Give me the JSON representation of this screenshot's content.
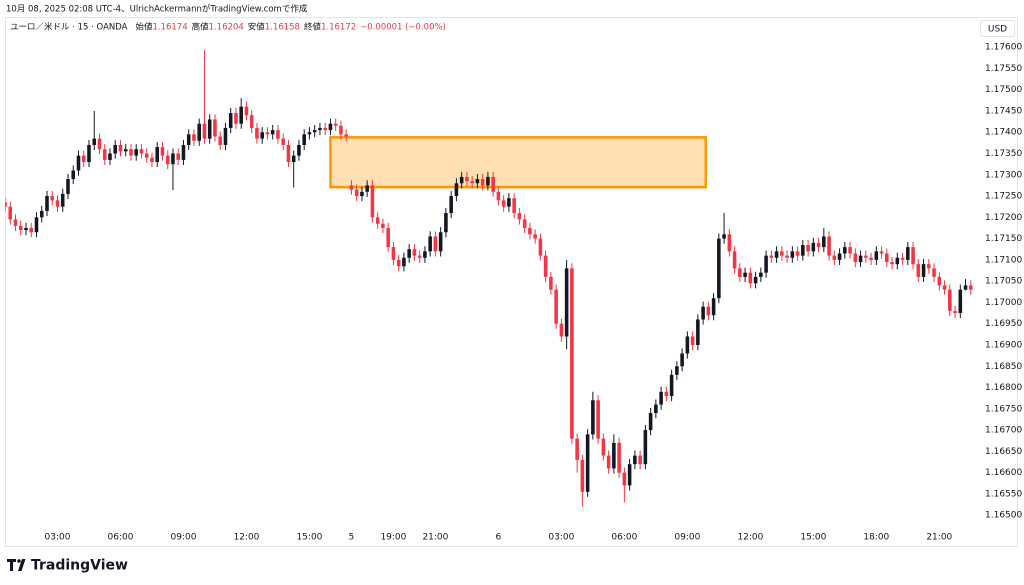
{
  "header": {
    "caption": "10月 08, 2025 02:08 UTC-4、UlrichAckermannがTradingView.comで作成",
    "symbol": "ユーロ／米ドル · 15 · OANDA",
    "ohlc": [
      {
        "label": "始値",
        "value": "1.16174"
      },
      {
        "label": "高値",
        "value": "1.16204"
      },
      {
        "label": "安値",
        "value": "1.16158"
      },
      {
        "label": "終値",
        "value": "1.16172"
      }
    ],
    "change": "−0.00001 (−0.00%)"
  },
  "chart_data": {
    "type": "candlestick",
    "currency": "USD",
    "up_color": "#131722",
    "down_color": "#f23645",
    "grid": false,
    "xlim": [
      0,
      184.8
    ],
    "xticks": [
      {
        "value": 10,
        "label": "03:00"
      },
      {
        "value": 22,
        "label": "06:00"
      },
      {
        "value": 34,
        "label": "09:00"
      },
      {
        "value": 46,
        "label": "12:00"
      },
      {
        "value": 58,
        "label": "15:00"
      },
      {
        "value": 66,
        "label": "5"
      },
      {
        "value": 74,
        "label": "19:00"
      },
      {
        "value": 82,
        "label": "21:00"
      },
      {
        "value": 94,
        "label": "6"
      },
      {
        "value": 106,
        "label": "03:00"
      },
      {
        "value": 118,
        "label": "06:00"
      },
      {
        "value": 130,
        "label": "09:00"
      },
      {
        "value": 142,
        "label": "12:00"
      },
      {
        "value": 154,
        "label": "15:00"
      },
      {
        "value": 166,
        "label": "18:00"
      },
      {
        "value": 178,
        "label": "21:00"
      }
    ],
    "ylim": [
      1.1643,
      1.17659
    ],
    "yticks": [
      {
        "value": 1.165,
        "label": "1.16500"
      },
      {
        "value": 1.1655,
        "label": "1.16550"
      },
      {
        "value": 1.166,
        "label": "1.16600"
      },
      {
        "value": 1.1665,
        "label": "1.16650"
      },
      {
        "value": 1.167,
        "label": "1.16700"
      },
      {
        "value": 1.1675,
        "label": "1.16750"
      },
      {
        "value": 1.168,
        "label": "1.16800"
      },
      {
        "value": 1.1685,
        "label": "1.16850"
      },
      {
        "value": 1.169,
        "label": "1.16900"
      },
      {
        "value": 1.1695,
        "label": "1.16950"
      },
      {
        "value": 1.17,
        "label": "1.17000"
      },
      {
        "value": 1.1705,
        "label": "1.17050"
      },
      {
        "value": 1.171,
        "label": "1.17100"
      },
      {
        "value": 1.1715,
        "label": "1.17150"
      },
      {
        "value": 1.172,
        "label": "1.17200"
      },
      {
        "value": 1.1725,
        "label": "1.17250"
      },
      {
        "value": 1.173,
        "label": "1.17300"
      },
      {
        "value": 1.1735,
        "label": "1.17350"
      },
      {
        "value": 1.174,
        "label": "1.17400"
      },
      {
        "value": 1.1745,
        "label": "1.17450"
      },
      {
        "value": 1.175,
        "label": "1.17500"
      },
      {
        "value": 1.1755,
        "label": "1.17550"
      },
      {
        "value": 1.176,
        "label": "1.17600"
      }
    ],
    "zone": {
      "top": 1.17388,
      "bottom": 1.17271,
      "from": 62,
      "to": 133.5,
      "fill": "#ffe0b2",
      "stroke": "#ff9800"
    },
    "open": [
      1.17235,
      1.17225,
      1.17195,
      1.1718,
      1.1717,
      1.17175,
      1.17165,
      1.172,
      1.17215,
      1.1725,
      1.1724,
      1.17225,
      1.17255,
      1.1729,
      1.1731,
      1.17345,
      1.1733,
      1.1737,
      1.17385,
      1.1736,
      1.17335,
      1.1735,
      1.1737,
      1.17355,
      1.1736,
      1.17345,
      1.1736,
      1.1735,
      1.1734,
      1.1733,
      1.17365,
      1.17345,
      1.17325,
      1.1735,
      1.17335,
      1.1737,
      1.17395,
      1.1738,
      1.1742,
      1.17385,
      1.1743,
      1.1739,
      1.1737,
      1.1741,
      1.17445,
      1.1742,
      1.1746,
      1.1744,
      1.1741,
      1.17385,
      1.174,
      1.17395,
      1.17405,
      1.17385,
      1.1737,
      1.1733,
      1.17345,
      1.1737,
      1.17395,
      1.174,
      1.17405,
      1.1741,
      1.17405,
      1.1742,
      1.17415,
      1.17395,
      1.17275,
      1.17265,
      1.1725,
      1.1726,
      1.17275,
      1.172,
      1.17185,
      1.17175,
      1.1713,
      1.171,
      1.17085,
      1.17105,
      1.17125,
      1.1711,
      1.17105,
      1.1712,
      1.17155,
      1.1712,
      1.17165,
      1.1721,
      1.1725,
      1.1728,
      1.17295,
      1.17285,
      1.1728,
      1.1729,
      1.17275,
      1.17295,
      1.1726,
      1.1724,
      1.17225,
      1.17245,
      1.1721,
      1.17195,
      1.17175,
      1.1716,
      1.1715,
      1.1711,
      1.1706,
      1.1703,
      1.1695,
      1.1692,
      1.1708,
      1.1668,
      1.1663,
      1.16555,
      1.1669,
      1.1677,
      1.1668,
      1.1664,
      1.1661,
      1.1667,
      1.166,
      1.1657,
      1.1662,
      1.1664,
      1.1662,
      1.167,
      1.1674,
      1.1676,
      1.1679,
      1.1678,
      1.1683,
      1.1685,
      1.1688,
      1.1692,
      1.169,
      1.1696,
      1.1699,
      1.1697,
      1.1701,
      1.1715,
      1.1716,
      1.1712,
      1.1708,
      1.1706,
      1.1707,
      1.17045,
      1.1706,
      1.1707,
      1.1711,
      1.17105,
      1.1712,
      1.1711,
      1.17105,
      1.1712,
      1.1711,
      1.17135,
      1.1712,
      1.1714,
      1.1713,
      1.17155,
      1.1711,
      1.171,
      1.17115,
      1.1713,
      1.17115,
      1.17095,
      1.1711,
      1.17105,
      1.171,
      1.1712,
      1.17115,
      1.17095,
      1.1709,
      1.17105,
      1.171,
      1.1713,
      1.1709,
      1.1706,
      1.1709,
      1.1708,
      1.1706,
      1.1704,
      1.1703,
      1.1698,
      1.16975,
      1.1703,
      1.1704
    ],
    "high": [
      1.17247,
      1.17237,
      1.17207,
      1.17192,
      1.17187,
      1.17187,
      1.17212,
      1.17227,
      1.17262,
      1.17262,
      1.17252,
      1.17267,
      1.17302,
      1.17322,
      1.17357,
      1.17357,
      1.17382,
      1.1745,
      1.17397,
      1.17372,
      1.17362,
      1.17382,
      1.17382,
      1.17372,
      1.17372,
      1.17372,
      1.17372,
      1.17362,
      1.17352,
      1.17377,
      1.17377,
      1.17357,
      1.17362,
      1.17362,
      1.17382,
      1.17407,
      1.17407,
      1.17432,
      1.17593,
      1.17442,
      1.17442,
      1.17402,
      1.17422,
      1.17457,
      1.17457,
      1.1748,
      1.17472,
      1.17452,
      1.17422,
      1.17412,
      1.17412,
      1.17417,
      1.17417,
      1.17397,
      1.17382,
      1.17357,
      1.17382,
      1.17407,
      1.17412,
      1.17417,
      1.17422,
      1.17422,
      1.17432,
      1.17432,
      1.17427,
      1.17407,
      1.17287,
      1.17277,
      1.17272,
      1.17287,
      1.17287,
      1.17212,
      1.17197,
      1.17187,
      1.17142,
      1.17112,
      1.17117,
      1.17137,
      1.17137,
      1.17122,
      1.17132,
      1.17167,
      1.17167,
      1.17177,
      1.17222,
      1.17262,
      1.17292,
      1.17307,
      1.17307,
      1.17297,
      1.17302,
      1.17302,
      1.17307,
      1.17307,
      1.17272,
      1.17252,
      1.17257,
      1.17257,
      1.17222,
      1.17207,
      1.17187,
      1.17172,
      1.17162,
      1.17122,
      1.17072,
      1.17042,
      1.16962,
      1.171,
      1.17092,
      1.16692,
      1.16642,
      1.16702,
      1.1679,
      1.16782,
      1.16692,
      1.16652,
      1.1669,
      1.16682,
      1.16612,
      1.16632,
      1.16652,
      1.16652,
      1.16712,
      1.16752,
      1.16772,
      1.16802,
      1.16802,
      1.16842,
      1.16862,
      1.16892,
      1.16932,
      1.16932,
      1.16972,
      1.17002,
      1.17002,
      1.17022,
      1.17162,
      1.1721,
      1.17172,
      1.17132,
      1.17092,
      1.17082,
      1.17082,
      1.17072,
      1.17082,
      1.17122,
      1.17122,
      1.17132,
      1.17132,
      1.17122,
      1.17132,
      1.17132,
      1.17147,
      1.17147,
      1.17152,
      1.17152,
      1.17175,
      1.17167,
      1.17122,
      1.17127,
      1.17142,
      1.17142,
      1.17127,
      1.17122,
      1.17122,
      1.17117,
      1.17132,
      1.17132,
      1.17127,
      1.17107,
      1.17117,
      1.17117,
      1.17142,
      1.17142,
      1.17102,
      1.17102,
      1.17102,
      1.17092,
      1.17072,
      1.17052,
      1.17042,
      1.16992,
      1.17042,
      1.17055,
      1.17052
    ],
    "low": [
      1.17213,
      1.17183,
      1.17168,
      1.17158,
      1.17158,
      1.17153,
      1.17153,
      1.17188,
      1.17203,
      1.17228,
      1.17213,
      1.17213,
      1.17243,
      1.17278,
      1.17298,
      1.17318,
      1.17318,
      1.17358,
      1.17348,
      1.17323,
      1.17323,
      1.17338,
      1.17343,
      1.17343,
      1.17333,
      1.17333,
      1.17338,
      1.17328,
      1.17318,
      1.17318,
      1.17333,
      1.17313,
      1.17264,
      1.17323,
      1.17323,
      1.17358,
      1.17368,
      1.17368,
      1.17373,
      1.17373,
      1.17378,
      1.17358,
      1.17358,
      1.17398,
      1.17408,
      1.17408,
      1.17428,
      1.17398,
      1.17373,
      1.17373,
      1.17383,
      1.17383,
      1.17373,
      1.17358,
      1.17318,
      1.1727,
      1.17333,
      1.17358,
      1.17383,
      1.17388,
      1.17393,
      1.17393,
      1.17393,
      1.17403,
      1.17383,
      1.17378,
      1.17253,
      1.17238,
      1.17238,
      1.17248,
      1.17188,
      1.17173,
      1.17163,
      1.17118,
      1.17088,
      1.17073,
      1.17073,
      1.17093,
      1.17098,
      1.17093,
      1.17093,
      1.17108,
      1.17108,
      1.17108,
      1.17153,
      1.17198,
      1.17238,
      1.17268,
      1.17273,
      1.17268,
      1.17268,
      1.17263,
      1.17263,
      1.17248,
      1.17228,
      1.17213,
      1.17213,
      1.17198,
      1.17183,
      1.17163,
      1.17148,
      1.17138,
      1.17098,
      1.17048,
      1.17018,
      1.16938,
      1.16908,
      1.1689,
      1.16668,
      1.166,
      1.1652,
      1.16543,
      1.16678,
      1.16668,
      1.16628,
      1.16598,
      1.16598,
      1.16588,
      1.1653,
      1.16558,
      1.16608,
      1.16608,
      1.16608,
      1.16688,
      1.16728,
      1.16748,
      1.16768,
      1.16768,
      1.16818,
      1.16838,
      1.16868,
      1.16888,
      1.16888,
      1.16948,
      1.16958,
      1.16958,
      1.16998,
      1.17138,
      1.17108,
      1.17068,
      1.17048,
      1.17048,
      1.17033,
      1.17033,
      1.17048,
      1.17058,
      1.17093,
      1.17093,
      1.17098,
      1.17093,
      1.17093,
      1.17098,
      1.17098,
      1.17108,
      1.17108,
      1.17118,
      1.17118,
      1.17098,
      1.17088,
      1.17088,
      1.17103,
      1.17103,
      1.17083,
      1.17083,
      1.17093,
      1.17088,
      1.17088,
      1.17103,
      1.17083,
      1.17078,
      1.17078,
      1.17088,
      1.17088,
      1.17078,
      1.17048,
      1.17048,
      1.17068,
      1.17048,
      1.17028,
      1.17018,
      1.16968,
      1.16963,
      1.16963,
      1.17028,
      1.17018
    ],
    "close": [
      1.17225,
      1.17195,
      1.1718,
      1.1717,
      1.17175,
      1.17165,
      1.172,
      1.17215,
      1.1725,
      1.1724,
      1.17225,
      1.17255,
      1.1729,
      1.1731,
      1.17345,
      1.1733,
      1.1737,
      1.17385,
      1.1736,
      1.17335,
      1.1735,
      1.1737,
      1.17355,
      1.1736,
      1.17345,
      1.1736,
      1.1735,
      1.1734,
      1.1733,
      1.17365,
      1.17345,
      1.17325,
      1.1735,
      1.17335,
      1.1737,
      1.17395,
      1.1738,
      1.1742,
      1.17385,
      1.1743,
      1.1739,
      1.1737,
      1.1741,
      1.17445,
      1.1742,
      1.1746,
      1.1744,
      1.1741,
      1.17385,
      1.174,
      1.17395,
      1.17405,
      1.17385,
      1.1737,
      1.1733,
      1.17345,
      1.1737,
      1.17395,
      1.174,
      1.17405,
      1.1741,
      1.17405,
      1.1742,
      1.17415,
      1.17395,
      1.1739,
      1.17265,
      1.1725,
      1.1726,
      1.17275,
      1.172,
      1.17185,
      1.17175,
      1.1713,
      1.171,
      1.17085,
      1.17105,
      1.17125,
      1.1711,
      1.17105,
      1.1712,
      1.17155,
      1.1712,
      1.17165,
      1.1721,
      1.1725,
      1.1728,
      1.17295,
      1.17285,
      1.1728,
      1.1729,
      1.17275,
      1.17295,
      1.1726,
      1.1724,
      1.17225,
      1.17245,
      1.1721,
      1.17195,
      1.17175,
      1.1716,
      1.1715,
      1.1711,
      1.1706,
      1.1703,
      1.1695,
      1.1692,
      1.1708,
      1.1668,
      1.1663,
      1.16555,
      1.1669,
      1.1677,
      1.1668,
      1.1664,
      1.1661,
      1.1667,
      1.166,
      1.1657,
      1.1662,
      1.1664,
      1.1662,
      1.167,
      1.1674,
      1.1676,
      1.1679,
      1.1678,
      1.1683,
      1.1685,
      1.1688,
      1.1692,
      1.169,
      1.1696,
      1.1699,
      1.1697,
      1.1701,
      1.1715,
      1.1716,
      1.1712,
      1.1708,
      1.1706,
      1.1707,
      1.17045,
      1.1706,
      1.1707,
      1.1711,
      1.17105,
      1.1712,
      1.1711,
      1.17105,
      1.1712,
      1.1711,
      1.17135,
      1.1712,
      1.1714,
      1.1713,
      1.17155,
      1.1711,
      1.171,
      1.17115,
      1.1713,
      1.17115,
      1.17095,
      1.1711,
      1.17105,
      1.171,
      1.1712,
      1.17115,
      1.17095,
      1.1709,
      1.17105,
      1.171,
      1.1713,
      1.1709,
      1.1706,
      1.1709,
      1.1708,
      1.1706,
      1.1704,
      1.1703,
      1.1698,
      1.16975,
      1.1703,
      1.1704,
      1.1703
    ]
  },
  "footer": {
    "brand": "TradingView"
  }
}
